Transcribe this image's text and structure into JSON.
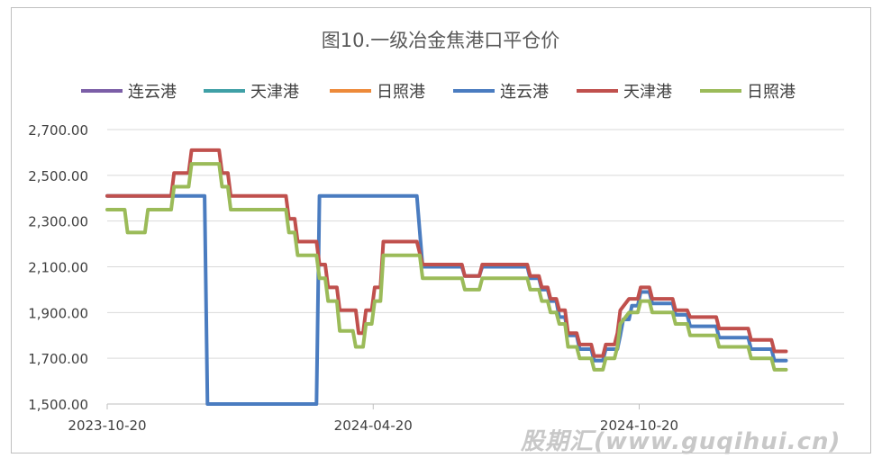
{
  "chart_data": {
    "type": "line",
    "title": "图10.一级冶金焦港口平仓价",
    "xlabel": "",
    "ylabel": "",
    "ylim": [
      1500,
      2700
    ],
    "y_ticks": [
      "1,500.00",
      "1,700.00",
      "1,900.00",
      "2,100.00",
      "2,300.00",
      "2,500.00",
      "2,700.00"
    ],
    "y_tick_values": [
      1500,
      1700,
      1900,
      2100,
      2300,
      2500,
      2700
    ],
    "x_range": [
      "2023-10-20",
      "2025-03-10"
    ],
    "x_ticks": [
      "2023-10-20",
      "2024-04-20",
      "2024-10-20"
    ],
    "grid": "horizontal",
    "legend_position": "top",
    "legend": [
      {
        "name": "连云港",
        "color": "#7b5ea7"
      },
      {
        "name": "天津港",
        "color": "#3fa0a6"
      },
      {
        "name": "日照港",
        "color": "#ed8a3a"
      },
      {
        "name": "连云港",
        "color": "#4a7cc0"
      },
      {
        "name": "天津港",
        "color": "#c0504d"
      },
      {
        "name": "日照港",
        "color": "#9bbb59"
      }
    ],
    "series": [
      {
        "name": "连云港",
        "color": "#4a7cc0",
        "points": [
          [
            "2023-10-20",
            2410
          ],
          [
            "2023-12-26",
            2410
          ],
          [
            "2023-12-28",
            1500
          ],
          [
            "2024-03-12",
            1500
          ],
          [
            "2024-03-14",
            2410
          ],
          [
            "2024-05-20",
            2410
          ],
          [
            "2024-05-24",
            2100
          ],
          [
            "2024-06-20",
            2100
          ],
          [
            "2024-06-22",
            2060
          ],
          [
            "2024-07-02",
            2060
          ],
          [
            "2024-07-04",
            2100
          ],
          [
            "2024-08-04",
            2100
          ],
          [
            "2024-08-06",
            2050
          ],
          [
            "2024-08-12",
            2050
          ],
          [
            "2024-08-14",
            2000
          ],
          [
            "2024-08-18",
            2000
          ],
          [
            "2024-08-20",
            1950
          ],
          [
            "2024-08-24",
            1950
          ],
          [
            "2024-08-26",
            1880
          ],
          [
            "2024-08-30",
            1880
          ],
          [
            "2024-09-01",
            1800
          ],
          [
            "2024-09-07",
            1800
          ],
          [
            "2024-09-09",
            1740
          ],
          [
            "2024-09-17",
            1740
          ],
          [
            "2024-09-19",
            1690
          ],
          [
            "2024-09-25",
            1690
          ],
          [
            "2024-09-27",
            1740
          ],
          [
            "2024-10-05",
            1740
          ],
          [
            "2024-10-07",
            1800
          ],
          [
            "2024-10-09",
            1870
          ],
          [
            "2024-10-13",
            1870
          ],
          [
            "2024-10-15",
            1930
          ],
          [
            "2024-10-19",
            1930
          ],
          [
            "2024-10-21",
            1990
          ],
          [
            "2024-10-27",
            1990
          ],
          [
            "2024-10-29",
            1940
          ],
          [
            "2024-11-12",
            1940
          ],
          [
            "2024-11-14",
            1890
          ],
          [
            "2024-11-22",
            1890
          ],
          [
            "2024-11-24",
            1840
          ],
          [
            "2024-12-12",
            1840
          ],
          [
            "2024-12-14",
            1790
          ],
          [
            "2025-01-03",
            1790
          ],
          [
            "2025-01-05",
            1740
          ],
          [
            "2025-01-19",
            1740
          ],
          [
            "2025-01-21",
            1690
          ],
          [
            "2025-01-29",
            1690
          ]
        ]
      },
      {
        "name": "天津港",
        "color": "#c0504d",
        "points": [
          [
            "2023-10-20",
            2410
          ],
          [
            "2023-12-03",
            2410
          ],
          [
            "2023-12-05",
            2510
          ],
          [
            "2023-12-15",
            2510
          ],
          [
            "2023-12-17",
            2610
          ],
          [
            "2024-01-05",
            2610
          ],
          [
            "2024-01-07",
            2510
          ],
          [
            "2024-01-11",
            2510
          ],
          [
            "2024-01-13",
            2410
          ],
          [
            "2024-02-20",
            2410
          ],
          [
            "2024-02-22",
            2310
          ],
          [
            "2024-02-26",
            2310
          ],
          [
            "2024-02-28",
            2210
          ],
          [
            "2024-03-12",
            2210
          ],
          [
            "2024-03-14",
            2110
          ],
          [
            "2024-03-18",
            2110
          ],
          [
            "2024-03-20",
            2010
          ],
          [
            "2024-03-26",
            2010
          ],
          [
            "2024-03-28",
            1910
          ],
          [
            "2024-04-08",
            1910
          ],
          [
            "2024-04-10",
            1810
          ],
          [
            "2024-04-13",
            1810
          ],
          [
            "2024-04-15",
            1910
          ],
          [
            "2024-04-19",
            1910
          ],
          [
            "2024-04-21",
            2010
          ],
          [
            "2024-04-25",
            2010
          ],
          [
            "2024-04-27",
            2210
          ],
          [
            "2024-05-20",
            2210
          ],
          [
            "2024-05-24",
            2110
          ],
          [
            "2024-06-20",
            2110
          ],
          [
            "2024-06-22",
            2060
          ],
          [
            "2024-07-02",
            2060
          ],
          [
            "2024-07-04",
            2110
          ],
          [
            "2024-08-04",
            2110
          ],
          [
            "2024-08-06",
            2060
          ],
          [
            "2024-08-12",
            2060
          ],
          [
            "2024-08-14",
            2010
          ],
          [
            "2024-08-18",
            2010
          ],
          [
            "2024-08-20",
            1960
          ],
          [
            "2024-08-24",
            1960
          ],
          [
            "2024-08-26",
            1910
          ],
          [
            "2024-08-30",
            1910
          ],
          [
            "2024-09-01",
            1810
          ],
          [
            "2024-09-07",
            1810
          ],
          [
            "2024-09-09",
            1760
          ],
          [
            "2024-09-17",
            1760
          ],
          [
            "2024-09-19",
            1710
          ],
          [
            "2024-09-25",
            1710
          ],
          [
            "2024-09-27",
            1760
          ],
          [
            "2024-10-03",
            1760
          ],
          [
            "2024-10-05",
            1810
          ],
          [
            "2024-10-07",
            1910
          ],
          [
            "2024-10-13",
            1960
          ],
          [
            "2024-10-19",
            1960
          ],
          [
            "2024-10-21",
            2010
          ],
          [
            "2024-10-27",
            2010
          ],
          [
            "2024-10-29",
            1960
          ],
          [
            "2024-11-12",
            1960
          ],
          [
            "2024-11-14",
            1910
          ],
          [
            "2024-11-22",
            1910
          ],
          [
            "2024-11-24",
            1880
          ],
          [
            "2024-12-12",
            1880
          ],
          [
            "2024-12-14",
            1830
          ],
          [
            "2025-01-03",
            1830
          ],
          [
            "2025-01-05",
            1780
          ],
          [
            "2025-01-19",
            1780
          ],
          [
            "2025-01-21",
            1730
          ],
          [
            "2025-01-29",
            1730
          ]
        ]
      },
      {
        "name": "日照港",
        "color": "#9bbb59",
        "points": [
          [
            "2023-10-20",
            2350
          ],
          [
            "2023-11-01",
            2350
          ],
          [
            "2023-11-03",
            2250
          ],
          [
            "2023-11-15",
            2250
          ],
          [
            "2023-11-17",
            2350
          ],
          [
            "2023-12-03",
            2350
          ],
          [
            "2023-12-05",
            2450
          ],
          [
            "2023-12-15",
            2450
          ],
          [
            "2023-12-17",
            2550
          ],
          [
            "2024-01-05",
            2550
          ],
          [
            "2024-01-07",
            2450
          ],
          [
            "2024-01-11",
            2450
          ],
          [
            "2024-01-13",
            2350
          ],
          [
            "2024-02-20",
            2350
          ],
          [
            "2024-02-22",
            2250
          ],
          [
            "2024-02-26",
            2250
          ],
          [
            "2024-02-28",
            2150
          ],
          [
            "2024-03-12",
            2150
          ],
          [
            "2024-03-14",
            2050
          ],
          [
            "2024-03-18",
            2050
          ],
          [
            "2024-03-20",
            1950
          ],
          [
            "2024-03-26",
            1950
          ],
          [
            "2024-03-28",
            1820
          ],
          [
            "2024-04-06",
            1820
          ],
          [
            "2024-04-08",
            1750
          ],
          [
            "2024-04-13",
            1750
          ],
          [
            "2024-04-15",
            1850
          ],
          [
            "2024-04-19",
            1850
          ],
          [
            "2024-04-21",
            1950
          ],
          [
            "2024-04-25",
            1950
          ],
          [
            "2024-04-27",
            2150
          ],
          [
            "2024-05-22",
            2150
          ],
          [
            "2024-05-24",
            2050
          ],
          [
            "2024-06-20",
            2050
          ],
          [
            "2024-06-22",
            2000
          ],
          [
            "2024-07-02",
            2000
          ],
          [
            "2024-07-04",
            2050
          ],
          [
            "2024-08-04",
            2050
          ],
          [
            "2024-08-06",
            2000
          ],
          [
            "2024-08-12",
            2000
          ],
          [
            "2024-08-14",
            1950
          ],
          [
            "2024-08-18",
            1950
          ],
          [
            "2024-08-20",
            1900
          ],
          [
            "2024-08-24",
            1900
          ],
          [
            "2024-08-26",
            1850
          ],
          [
            "2024-08-30",
            1850
          ],
          [
            "2024-09-01",
            1750
          ],
          [
            "2024-09-07",
            1750
          ],
          [
            "2024-09-09",
            1700
          ],
          [
            "2024-09-17",
            1700
          ],
          [
            "2024-09-19",
            1650
          ],
          [
            "2024-09-25",
            1650
          ],
          [
            "2024-09-27",
            1700
          ],
          [
            "2024-10-03",
            1700
          ],
          [
            "2024-10-05",
            1750
          ],
          [
            "2024-10-07",
            1850
          ],
          [
            "2024-10-13",
            1900
          ],
          [
            "2024-10-19",
            1900
          ],
          [
            "2024-10-21",
            1950
          ],
          [
            "2024-10-27",
            1950
          ],
          [
            "2024-10-29",
            1900
          ],
          [
            "2024-11-12",
            1900
          ],
          [
            "2024-11-14",
            1850
          ],
          [
            "2024-11-22",
            1850
          ],
          [
            "2024-11-24",
            1800
          ],
          [
            "2024-12-12",
            1800
          ],
          [
            "2024-12-14",
            1750
          ],
          [
            "2025-01-03",
            1750
          ],
          [
            "2025-01-05",
            1700
          ],
          [
            "2025-01-19",
            1700
          ],
          [
            "2025-01-21",
            1650
          ],
          [
            "2025-01-29",
            1650
          ]
        ]
      }
    ]
  },
  "watermark": "股期汇(www.guqihui.cn)"
}
